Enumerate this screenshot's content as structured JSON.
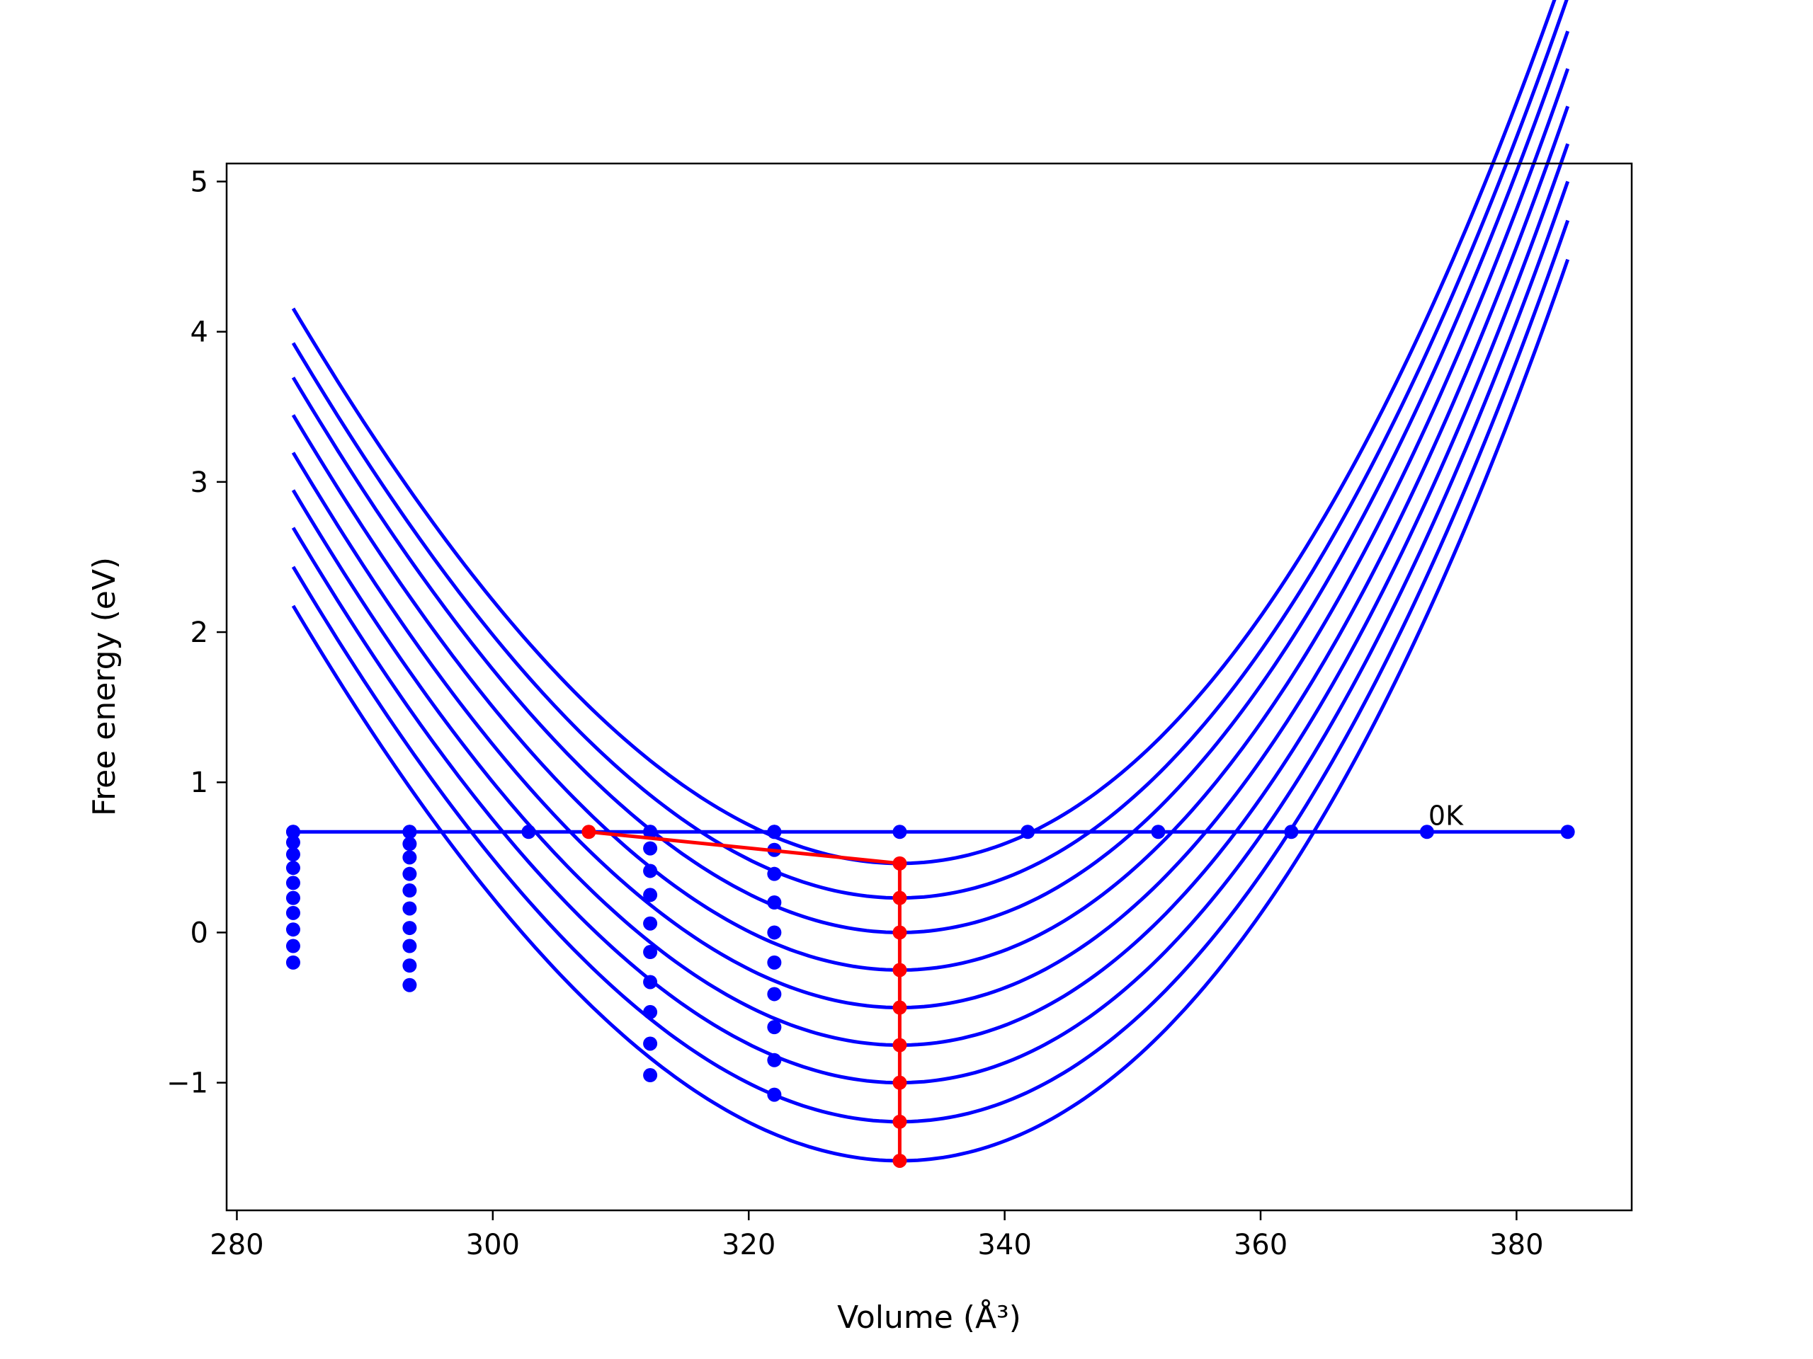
{
  "chart_data": {
    "type": "line",
    "title": "",
    "xlabel": "Volume (Å³)",
    "ylabel": "Free energy (eV)",
    "xlim": [
      279.2,
      389.0
    ],
    "ylim": [
      -1.85,
      5.12
    ],
    "xticks": [
      {
        "value": 280,
        "label": "280"
      },
      {
        "value": 300,
        "label": "300"
      },
      {
        "value": 320,
        "label": "320"
      },
      {
        "value": 340,
        "label": "340"
      },
      {
        "value": 360,
        "label": "360"
      },
      {
        "value": 380,
        "label": "380"
      }
    ],
    "yticks": [
      {
        "value": -1,
        "label": "−1"
      },
      {
        "value": 0,
        "label": "0"
      },
      {
        "value": 1,
        "label": "1"
      },
      {
        "value": 2,
        "label": "2"
      },
      {
        "value": 3,
        "label": "3"
      },
      {
        "value": 4,
        "label": "4"
      },
      {
        "value": 5,
        "label": "5"
      }
    ],
    "grid": false,
    "curve_color": "#0000ff",
    "eq_color": "#ff0000",
    "curve_x_range": [
      284.4,
      384.0
    ],
    "curves": [
      {
        "min_x": 331.8,
        "min_y": 0.46,
        "a": 0.00191,
        "b": 5.6e-06
      },
      {
        "min_x": 331.8,
        "min_y": 0.23,
        "a": 0.00191,
        "b": 5.6e-06
      },
      {
        "min_x": 331.8,
        "min_y": 0.0,
        "a": 0.00191,
        "b": 5.6e-06
      },
      {
        "min_x": 331.8,
        "min_y": -0.25,
        "a": 0.00191,
        "b": 5.6e-06
      },
      {
        "min_x": 331.8,
        "min_y": -0.5,
        "a": 0.00191,
        "b": 5.6e-06
      },
      {
        "min_x": 331.8,
        "min_y": -0.75,
        "a": 0.00191,
        "b": 5.6e-06
      },
      {
        "min_x": 331.8,
        "min_y": -1.0,
        "a": 0.00191,
        "b": 5.6e-06
      },
      {
        "min_x": 331.8,
        "min_y": -1.26,
        "a": 0.00191,
        "b": 5.6e-06
      },
      {
        "min_x": 331.8,
        "min_y": -1.52,
        "a": 0.00191,
        "b": 5.6e-06
      }
    ],
    "zero_kelvin_line": {
      "x": [
        284.4,
        384.0
      ],
      "y": 0.67,
      "points_x": [
        284.4,
        293.5,
        302.8,
        312.3,
        322.0,
        331.8,
        341.8,
        352.0,
        362.4,
        373.0,
        384.0
      ],
      "label": "0K",
      "label_x": 373.0,
      "label_y": 0.67
    },
    "point_columns": [
      {
        "x": 284.4,
        "y": [
          0.67,
          0.6,
          0.52,
          0.43,
          0.33,
          0.23,
          0.13,
          0.02,
          -0.09,
          -0.2
        ]
      },
      {
        "x": 293.5,
        "y": [
          0.67,
          0.59,
          0.5,
          0.39,
          0.28,
          0.16,
          0.03,
          -0.09,
          -0.22,
          -0.35
        ]
      },
      {
        "x": 312.3,
        "y": [
          0.67,
          0.56,
          0.41,
          0.25,
          0.06,
          -0.13,
          -0.33,
          -0.53,
          -0.74,
          -0.95
        ]
      },
      {
        "x": 322.0,
        "y": [
          0.67,
          0.55,
          0.39,
          0.2,
          0.0,
          -0.2,
          -0.41,
          -0.63,
          -0.85,
          -1.08
        ]
      }
    ],
    "equilibrium_path": {
      "x": [
        307.5,
        331.8,
        331.8,
        331.8,
        331.8,
        331.8,
        331.8,
        331.8,
        331.8,
        331.8
      ],
      "y": [
        0.67,
        0.46,
        0.23,
        0.0,
        -0.25,
        -0.5,
        -0.75,
        -1.0,
        -1.26,
        -1.52
      ]
    }
  }
}
